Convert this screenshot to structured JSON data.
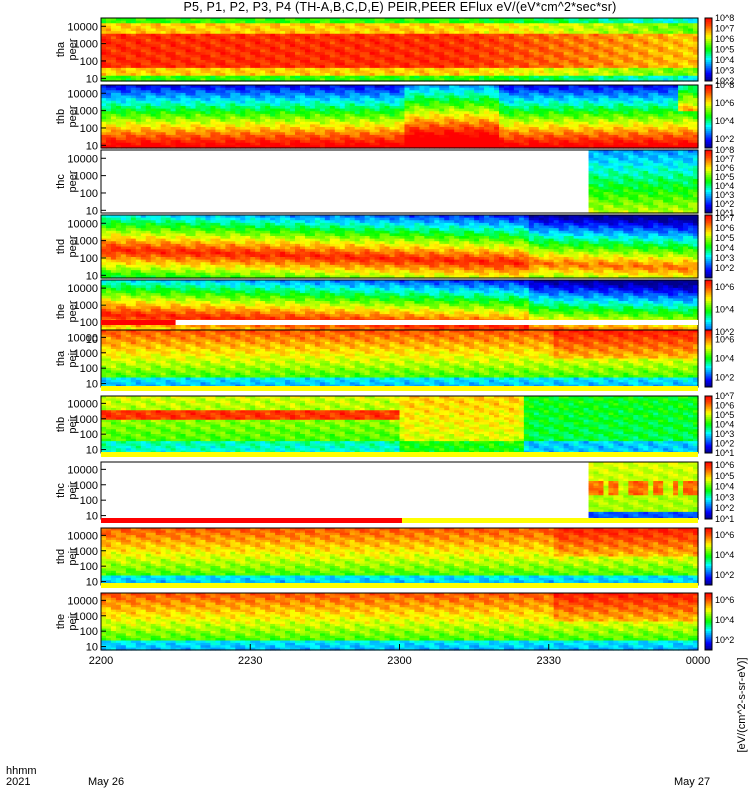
{
  "title": "P5, P1, P2, P3, P4 (TH-A,B,C,D,E) PEIR,PEER EFlux eV/(eV*cm^2*sec*sr)",
  "colorbar_unit_label": "[eV/(cm^2-s-sr-eV)]",
  "footer": {
    "row1_label": "hhmm",
    "row2_label": "2021",
    "start_date": "May 26",
    "end_date": "May 27"
  },
  "colors": {
    "spec_low": "#0000d0",
    "spec_mid": "#00d000",
    "spec_high": "#ff0000",
    "bar_red": "#ff0000",
    "bar_yellow": "#ffff00"
  },
  "chart_data": {
    "type": "heatmap",
    "x": {
      "ticks": [
        "2200",
        "2230",
        "2300",
        "2330",
        "0000"
      ],
      "tick_minutes": [
        0,
        30,
        60,
        90,
        120
      ],
      "range_minutes": [
        0,
        120
      ]
    },
    "y_scale": "log",
    "panels": [
      {
        "probe": "tha",
        "species": "peer",
        "y_ticks": [
          "10000",
          "1000",
          "100",
          "10"
        ],
        "y_tick_values": [
          10000,
          1000,
          100,
          10
        ],
        "ylim": [
          7,
          30000
        ],
        "data_start_min": 0,
        "cb_ticks": [
          "10^8",
          "10^7",
          "10^6",
          "10^5",
          "10^4",
          "10^3",
          "10^2"
        ],
        "cb_range": [
          2,
          8
        ],
        "profile": "e1"
      },
      {
        "probe": "thb",
        "species": "peer",
        "y_ticks": [
          "10000",
          "1000",
          "100",
          "10"
        ],
        "y_tick_values": [
          10000,
          1000,
          100,
          10
        ],
        "ylim": [
          7,
          30000
        ],
        "data_start_min": 0,
        "cb_ticks": [
          "10^8",
          "10^6",
          "10^4",
          "10^2"
        ],
        "cb_range": [
          1,
          8
        ],
        "profile": "e2"
      },
      {
        "probe": "thc",
        "species": "peer",
        "y_ticks": [
          "10000",
          "1000",
          "100",
          "10"
        ],
        "y_tick_values": [
          10000,
          1000,
          100,
          10
        ],
        "ylim": [
          7,
          30000
        ],
        "data_start_min": 98,
        "cb_ticks": [
          "10^8",
          "10^7",
          "10^6",
          "10^5",
          "10^4",
          "10^3",
          "10^2",
          "10^1"
        ],
        "cb_range": [
          1,
          8
        ],
        "profile": "e3"
      },
      {
        "probe": "thd",
        "species": "peer",
        "y_ticks": [
          "10000",
          "1000",
          "100",
          "10"
        ],
        "y_tick_values": [
          10000,
          1000,
          100,
          10
        ],
        "ylim": [
          7,
          30000
        ],
        "data_start_min": 0,
        "cb_ticks": [
          "10^7",
          "10^6",
          "10^5",
          "10^4",
          "10^3",
          "10^2"
        ],
        "cb_range": [
          1,
          7.3
        ],
        "profile": "e4"
      },
      {
        "probe": "the",
        "species": "peer",
        "y_ticks": [
          "10000",
          "1000",
          "100",
          "10"
        ],
        "y_tick_values": [
          10000,
          1000,
          100,
          10
        ],
        "ylim": [
          6,
          30000
        ],
        "data_start_min": 0,
        "cb_ticks": [
          "10^6",
          "10^4",
          "10^2"
        ],
        "cb_range": [
          1,
          6.6
        ],
        "profile": "e5"
      },
      {
        "probe": "tha",
        "species": "peir",
        "y_ticks": [
          "10000",
          "1000",
          "100",
          "10"
        ],
        "y_tick_values": [
          10000,
          1000,
          100,
          10
        ],
        "ylim": [
          6,
          30000
        ],
        "data_start_min": 0,
        "cb_ticks": [
          "10^6",
          "10^4",
          "10^2"
        ],
        "cb_range": [
          1,
          7
        ],
        "profile": "i1"
      },
      {
        "probe": "thb",
        "species": "peir",
        "y_ticks": [
          "10000",
          "1000",
          "100",
          "10"
        ],
        "y_tick_values": [
          10000,
          1000,
          100,
          10
        ],
        "ylim": [
          6,
          30000
        ],
        "data_start_min": 0,
        "cb_ticks": [
          "10^7",
          "10^6",
          "10^5",
          "10^4",
          "10^3",
          "10^2",
          "10^1"
        ],
        "cb_range": [
          1,
          7
        ],
        "profile": "i2"
      },
      {
        "probe": "thc",
        "species": "peir",
        "y_ticks": [
          "10000",
          "1000",
          "100",
          "10"
        ],
        "y_tick_values": [
          10000,
          1000,
          100,
          10
        ],
        "ylim": [
          6,
          30000
        ],
        "data_start_min": 98,
        "cb_ticks": [
          "10^6",
          "10^5",
          "10^4",
          "10^3",
          "10^2",
          "10^1"
        ],
        "cb_range": [
          1,
          6.3
        ],
        "profile": "i3"
      },
      {
        "probe": "thd",
        "species": "peir",
        "y_ticks": [
          "10000",
          "1000",
          "100",
          "10"
        ],
        "y_tick_values": [
          10000,
          1000,
          100,
          10
        ],
        "ylim": [
          6,
          30000
        ],
        "data_start_min": 0,
        "cb_ticks": [
          "10^6",
          "10^4",
          "10^2"
        ],
        "cb_range": [
          1,
          6.7
        ],
        "profile": "i4"
      },
      {
        "probe": "the",
        "species": "peir",
        "y_ticks": [
          "10000",
          "1000",
          "100",
          "10"
        ],
        "y_tick_values": [
          10000,
          1000,
          100,
          10
        ],
        "ylim": [
          6,
          30000
        ],
        "data_start_min": 0,
        "cb_ticks": [
          "10^6",
          "10^4",
          "10^2"
        ],
        "cb_range": [
          1,
          6.7
        ],
        "profile": "i5"
      }
    ],
    "mode_bars": [
      {
        "after_panel": 4,
        "segments": [
          {
            "from_min": 0,
            "to_min": 15,
            "color": "red"
          },
          {
            "from_min": 15,
            "to_min": 120,
            "color": "white"
          }
        ]
      },
      {
        "after_panel": 5,
        "segments": [
          {
            "from_min": 0,
            "to_min": 120,
            "color": "yellow"
          }
        ]
      },
      {
        "after_panel": 6,
        "segments": [
          {
            "from_min": 0,
            "to_min": 120,
            "color": "yellow"
          }
        ]
      },
      {
        "after_panel": 7,
        "segments": [
          {
            "from_min": 0,
            "to_min": 60.5,
            "color": "red"
          },
          {
            "from_min": 60.5,
            "to_min": 120,
            "color": "yellow"
          }
        ]
      },
      {
        "after_panel": 8,
        "segments": [
          {
            "from_min": 0,
            "to_min": 120,
            "color": "yellow"
          }
        ]
      }
    ]
  }
}
